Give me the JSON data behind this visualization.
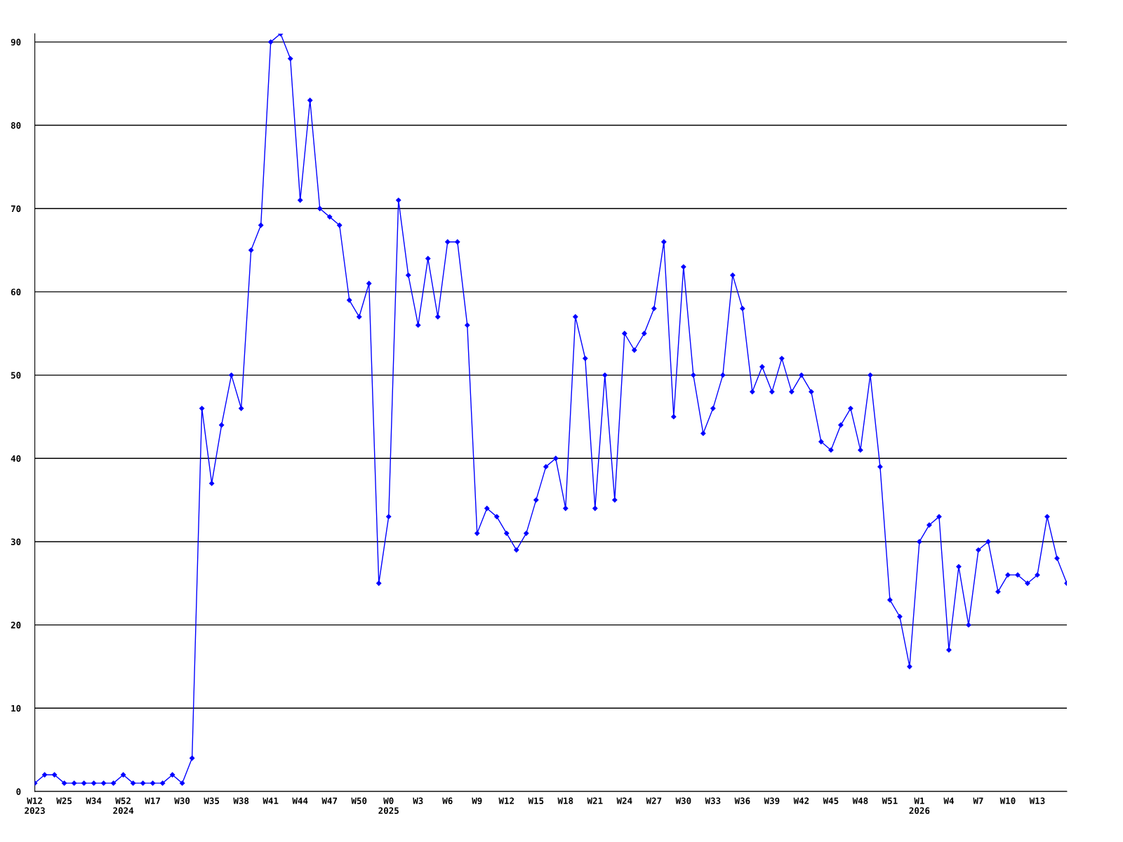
{
  "chart_data": {
    "type": "line",
    "categories": [
      "W12\n2023",
      null,
      null,
      "W25",
      null,
      null,
      "W34",
      null,
      null,
      "W52\n2024",
      null,
      null,
      "W17",
      null,
      null,
      "W30",
      null,
      null,
      "W35",
      null,
      null,
      "W38",
      null,
      null,
      "W41",
      null,
      null,
      "W44",
      null,
      null,
      "W47",
      null,
      null,
      "W50",
      null,
      null,
      "W0\n2025",
      null,
      null,
      "W3",
      null,
      null,
      "W6",
      null,
      null,
      "W9",
      null,
      null,
      "W12",
      null,
      null,
      "W15",
      null,
      null,
      "W18",
      null,
      null,
      "W21",
      null,
      null,
      "W24",
      null,
      null,
      "W27",
      null,
      null,
      "W30",
      null,
      null,
      "W33",
      null,
      null,
      "W36",
      null,
      null,
      "W39",
      null,
      null,
      "W42",
      null,
      null,
      "W45",
      null,
      null,
      "W48",
      null,
      null,
      "W51",
      null,
      null,
      "W1\n2026",
      null,
      null,
      "W4",
      null,
      null,
      "W7",
      null,
      null,
      "W10",
      null,
      null,
      "W13",
      null,
      null,
      null
    ],
    "series": [
      {
        "color": "#0000ff",
        "values": [
          1,
          2,
          2,
          1,
          1,
          1,
          1,
          1,
          1,
          2,
          1,
          1,
          1,
          1,
          2,
          1,
          4,
          46,
          37,
          44,
          50,
          46,
          65,
          68,
          90,
          91,
          88,
          71,
          83,
          70,
          69,
          68,
          59,
          57,
          61,
          25,
          33,
          71,
          62,
          56,
          64,
          57,
          66,
          66,
          56,
          31,
          34,
          33,
          31,
          29,
          31,
          35,
          39,
          40,
          34,
          57,
          52,
          34,
          50,
          35,
          55,
          53,
          55,
          58,
          66,
          45,
          63,
          50,
          43,
          46,
          50,
          62,
          58,
          48,
          51,
          48,
          52,
          48,
          50,
          48,
          42,
          41,
          44,
          46,
          41,
          50,
          39,
          23,
          21,
          15,
          30,
          32,
          33,
          17,
          27,
          20,
          29,
          30,
          24,
          26,
          26,
          25,
          26,
          33,
          28,
          25
        ]
      }
    ],
    "ylim": [
      0,
      91
    ],
    "yticks": [
      0,
      10,
      20,
      30,
      40,
      50,
      60,
      70,
      80,
      90
    ],
    "grid": "y",
    "marker": "diamond",
    "line_style": "solid",
    "legend": false
  }
}
